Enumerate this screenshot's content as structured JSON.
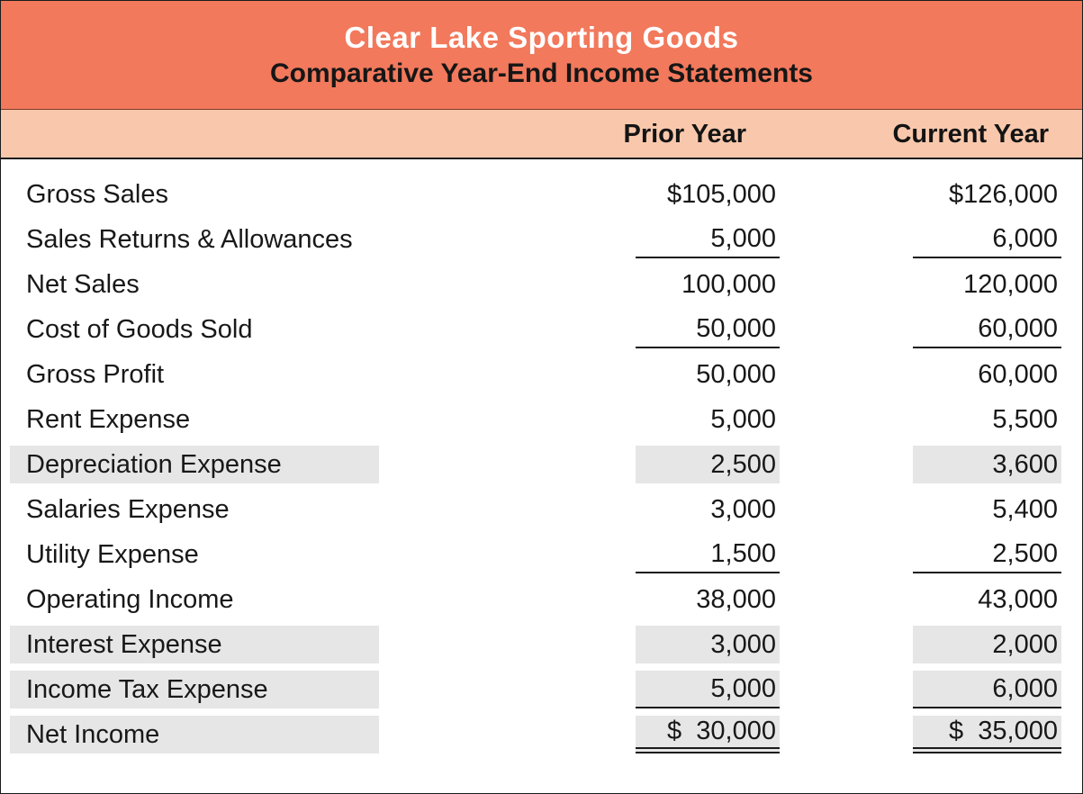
{
  "colors": {
    "accent": "#F2795C",
    "band": "#F9C8AC",
    "shade": "#E6E6E6",
    "ink": "#1B1B1B"
  },
  "header": {
    "title": "Clear Lake Sporting Goods",
    "subtitle": "Comparative Year-End Income Statements"
  },
  "columns": {
    "prior": "Prior Year",
    "current": "Current Year"
  },
  "rows": [
    {
      "label": "Gross Sales",
      "prior": "$105,000",
      "current": "$126,000",
      "shaded": false,
      "underline": "none"
    },
    {
      "label": "Sales Returns & Allowances",
      "prior": "5,000",
      "current": "6,000",
      "shaded": false,
      "underline": "single"
    },
    {
      "label": "Net Sales",
      "prior": "100,000",
      "current": "120,000",
      "shaded": false,
      "underline": "none"
    },
    {
      "label": "Cost of Goods Sold",
      "prior": "50,000",
      "current": "60,000",
      "shaded": false,
      "underline": "single"
    },
    {
      "label": "Gross Profit",
      "prior": "50,000",
      "current": "60,000",
      "shaded": false,
      "underline": "none"
    },
    {
      "label": "Rent Expense",
      "prior": "5,000",
      "current": "5,500",
      "shaded": false,
      "underline": "none"
    },
    {
      "label": "Depreciation Expense",
      "prior": "2,500",
      "current": "3,600",
      "shaded": true,
      "underline": "none"
    },
    {
      "label": "Salaries Expense",
      "prior": "3,000",
      "current": "5,400",
      "shaded": false,
      "underline": "none"
    },
    {
      "label": "Utility Expense",
      "prior": "1,500",
      "current": "2,500",
      "shaded": false,
      "underline": "single"
    },
    {
      "label": "Operating Income",
      "prior": "38,000",
      "current": "43,000",
      "shaded": false,
      "underline": "none"
    },
    {
      "label": "Interest Expense",
      "prior": "3,000",
      "current": "2,000",
      "shaded": true,
      "underline": "none"
    },
    {
      "label": "Income Tax Expense",
      "prior": "5,000",
      "current": "6,000",
      "shaded": true,
      "underline": "single"
    },
    {
      "label": "Net Income",
      "prior": "$  30,000",
      "current": "$  35,000",
      "shaded": true,
      "underline": "double"
    }
  ]
}
